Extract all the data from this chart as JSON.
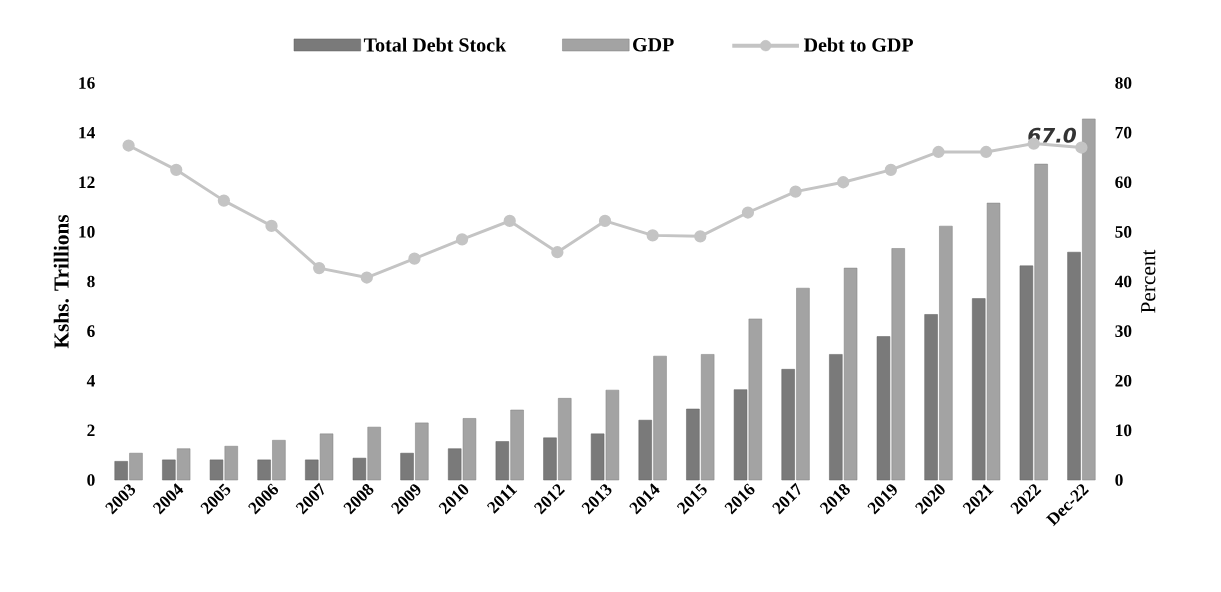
{
  "chart_data": {
    "type": "bar",
    "categories": [
      "2003",
      "2004",
      "2005",
      "2006",
      "2007",
      "2008",
      "2009",
      "2010",
      "2011",
      "2012",
      "2013",
      "2014",
      "2015",
      "2016",
      "2017",
      "2018",
      "2019",
      "2020",
      "2021",
      "2022",
      "Dec-22"
    ],
    "series": [
      {
        "name": "Total Debt Stock",
        "color": "#7a7a7a",
        "values": [
          0.75,
          0.81,
          0.81,
          0.81,
          0.81,
          0.88,
          1.08,
          1.26,
          1.55,
          1.7,
          1.86,
          2.41,
          2.86,
          3.64,
          4.46,
          5.06,
          5.78,
          6.67,
          7.31,
          8.63,
          9.18
        ]
      },
      {
        "name": "GDP",
        "color": "#a3a3a3",
        "values": [
          1.08,
          1.26,
          1.36,
          1.6,
          1.86,
          2.13,
          2.3,
          2.48,
          2.82,
          3.29,
          3.62,
          4.99,
          5.06,
          6.49,
          7.73,
          8.54,
          9.33,
          10.23,
          11.16,
          12.73,
          14.55
        ]
      },
      {
        "name": "Debt to GDP",
        "type": "line",
        "axis": "y2",
        "color": "#c4c4c4",
        "marker": "circle",
        "values": [
          67.4,
          62.5,
          56.3,
          51.2,
          42.7,
          40.8,
          44.6,
          48.5,
          52.2,
          45.9,
          52.2,
          49.3,
          49.1,
          53.9,
          58.1,
          60.0,
          62.5,
          66.1,
          66.1,
          67.8,
          67.0
        ],
        "value_labels": [
          null,
          null,
          null,
          null,
          null,
          null,
          null,
          null,
          null,
          null,
          null,
          null,
          null,
          null,
          null,
          null,
          null,
          null,
          null,
          null,
          "67.0"
        ]
      }
    ],
    "ylabel": "Kshs. Trillions",
    "y2label": "Percent",
    "ylim": [
      0,
      16
    ],
    "yticks": [
      0,
      2,
      4,
      6,
      8,
      10,
      12,
      14,
      16
    ],
    "y2lim": [
      0,
      80
    ],
    "y2ticks": [
      0,
      10,
      20,
      30,
      40,
      50,
      60,
      70,
      80
    ],
    "grid": false,
    "legend": "top"
  }
}
